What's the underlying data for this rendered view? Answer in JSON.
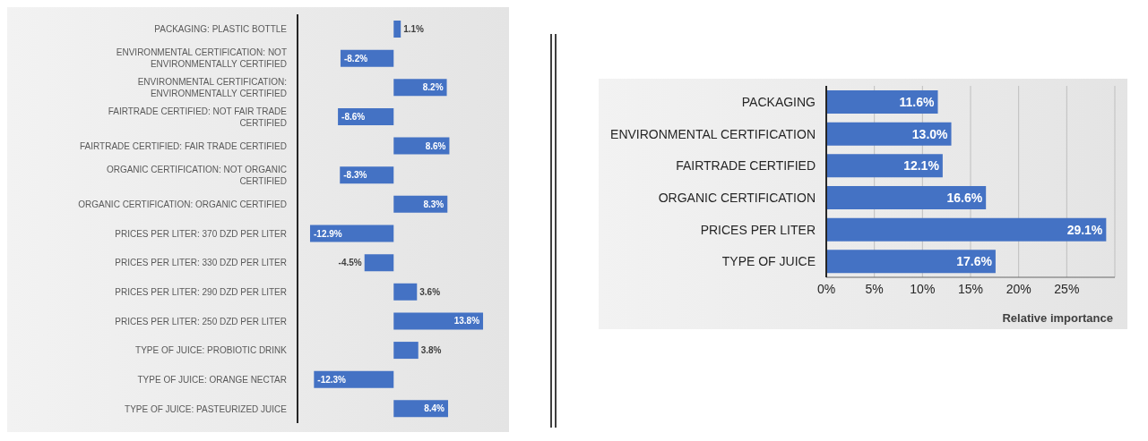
{
  "chart_data": [
    {
      "type": "bar",
      "orientation": "horizontal",
      "categories": [
        "PACKAGING: PLASTIC BOTTLE",
        "ENVIRONMENTAL CERTIFICATION: NOT ENVIRONMENTALLY CERTIFIED",
        "ENVIRONMENTAL CERTIFICATION: ENVIRONMENTALLY CERTIFIED",
        "FAIRTRADE CERTIFIED: NOT FAIR TRADE CERTIFIED",
        "FAIRTRADE CERTIFIED: FAIR TRADE CERTIFIED",
        "ORGANIC CERTIFICATION: NOT ORGANIC CERTIFIED",
        "ORGANIC CERTIFICATION: ORGANIC CERTIFIED",
        "PRICES PER LITER: 370 DZD PER LITER",
        "PRICES PER LITER: 330 DZD PER LITER",
        "PRICES PER LITER: 290 DZD PER LITER",
        "PRICES PER LITER: 250 DZD PER LITER",
        "TYPE OF JUICE: PROBIOTIC DRINK",
        "TYPE OF JUICE: ORANGE NECTAR",
        "TYPE OF JUICE: PASTEURIZED JUICE"
      ],
      "values": [
        1.1,
        -8.2,
        8.2,
        -8.6,
        8.6,
        -8.3,
        8.3,
        -12.9,
        -4.5,
        3.6,
        13.8,
        3.8,
        -12.3,
        8.4
      ],
      "value_labels": [
        "1.1%",
        "-8.2%",
        "8.2%",
        "-8.6%",
        "8.6%",
        "-8.3%",
        "8.3%",
        "-12.9%",
        "-4.5%",
        "3.6%",
        "13.8%",
        "3.8%",
        "-12.3%",
        "8.4%"
      ],
      "color": "#4472c4",
      "tick_labels": "y"
    },
    {
      "type": "bar",
      "orientation": "horizontal",
      "categories": [
        "PACKAGING",
        "ENVIRONMENTAL CERTIFICATION",
        "FAIRTRADE CERTIFIED",
        "ORGANIC CERTIFICATION",
        "PRICES PER LITER",
        "TYPE OF JUICE"
      ],
      "values": [
        11.6,
        13.0,
        12.1,
        16.6,
        29.1,
        17.6
      ],
      "value_labels": [
        "11.6%",
        "13.0%",
        "12.1%",
        "16.6%",
        "29.1%",
        "17.6%"
      ],
      "color": "#4472c4",
      "xlabel": "Relative importance",
      "xlim": [
        0,
        30
      ],
      "xticks": [
        {
          "value": 0,
          "label": "0%"
        },
        {
          "value": 5,
          "label": "5%"
        },
        {
          "value": 10,
          "label": "10%"
        },
        {
          "value": 15,
          "label": "15%"
        },
        {
          "value": 20,
          "label": "20%"
        },
        {
          "value": 25,
          "label": "25%"
        }
      ],
      "grid": "x"
    }
  ]
}
